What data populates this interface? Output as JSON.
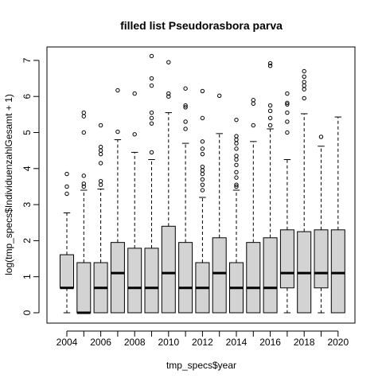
{
  "chart_data": {
    "type": "boxplot",
    "title": "filled list Pseudorasbora parva",
    "xlabel": "tmp_specs$year",
    "ylabel": "log(tmp_specs$IndividuenzahlGesamt + 1)",
    "ylim": [
      0,
      7.2
    ],
    "y_ticks": [
      0,
      1,
      2,
      3,
      4,
      5,
      6,
      7
    ],
    "x_tick_labels": [
      "2004",
      "2006",
      "2008",
      "2010",
      "2012",
      "2014",
      "2016",
      "2018",
      "2020"
    ],
    "box_fill": "#d3d3d3",
    "grid": false,
    "legend": "none",
    "boxes": [
      {
        "year": "2004",
        "lower_whisker": 0.0,
        "q1": 0.69,
        "median": 0.69,
        "q3": 1.61,
        "upper_whisker": 2.77,
        "outliers": [
          3.3,
          3.5,
          3.85
        ]
      },
      {
        "year": "2005",
        "lower_whisker": 0.0,
        "q1": 0.0,
        "median": 0.0,
        "q3": 1.39,
        "upper_whisker": 3.4,
        "outliers": [
          3.5,
          3.58,
          3.8,
          5.0,
          5.45,
          5.55
        ]
      },
      {
        "year": "2006",
        "lower_whisker": 0.0,
        "q1": 0.0,
        "median": 0.69,
        "q3": 1.39,
        "upper_whisker": 3.43,
        "outliers": [
          3.55,
          3.65,
          4.15,
          4.4,
          4.5,
          4.6,
          5.2
        ]
      },
      {
        "year": "2007",
        "lower_whisker": 0.0,
        "q1": 0.0,
        "median": 1.1,
        "q3": 1.95,
        "upper_whisker": 4.8,
        "outliers": [
          5.02,
          6.17
        ]
      },
      {
        "year": "2008",
        "lower_whisker": 0.0,
        "q1": 0.0,
        "median": 0.69,
        "q3": 1.79,
        "upper_whisker": 4.45,
        "outliers": [
          4.95,
          6.08
        ]
      },
      {
        "year": "2009",
        "lower_whisker": 0.0,
        "q1": 0.0,
        "median": 0.69,
        "q3": 1.79,
        "upper_whisker": 4.25,
        "outliers": [
          4.45,
          5.25,
          5.4,
          5.55,
          6.3,
          6.5,
          7.12
        ]
      },
      {
        "year": "2010",
        "lower_whisker": 0.0,
        "q1": 0.0,
        "median": 1.1,
        "q3": 2.4,
        "upper_whisker": 5.55,
        "outliers": [
          6.0,
          6.08,
          6.95
        ]
      },
      {
        "year": "2011",
        "lower_whisker": 0.0,
        "q1": 0.0,
        "median": 0.69,
        "q3": 1.95,
        "upper_whisker": 4.7,
        "outliers": [
          5.1,
          5.3,
          5.7,
          5.75,
          6.22
        ]
      },
      {
        "year": "2012",
        "lower_whisker": 0.0,
        "q1": 0.0,
        "median": 0.69,
        "q3": 1.39,
        "upper_whisker": 3.2,
        "outliers": [
          3.4,
          3.55,
          3.7,
          3.85,
          3.95,
          4.05,
          4.4,
          4.55,
          4.75,
          5.4,
          6.15
        ]
      },
      {
        "year": "2013",
        "lower_whisker": 0.0,
        "q1": 0.0,
        "median": 1.1,
        "q3": 2.08,
        "upper_whisker": 4.97,
        "outliers": [
          6.02
        ]
      },
      {
        "year": "2014",
        "lower_whisker": 0.0,
        "q1": 0.0,
        "median": 0.69,
        "q3": 1.39,
        "upper_whisker": 3.4,
        "outliers": [
          3.5,
          3.55,
          3.75,
          3.9,
          4.1,
          4.25,
          4.35,
          4.55,
          4.7,
          4.8,
          4.9,
          5.35
        ]
      },
      {
        "year": "2015",
        "lower_whisker": 0.0,
        "q1": 0.0,
        "median": 0.69,
        "q3": 1.95,
        "upper_whisker": 4.75,
        "outliers": [
          5.2,
          5.8,
          5.9
        ]
      },
      {
        "year": "2016",
        "lower_whisker": 0.0,
        "q1": 0.0,
        "median": 0.69,
        "q3": 2.08,
        "upper_whisker": 5.1,
        "outliers": [
          5.2,
          5.4,
          5.6,
          5.75,
          6.85,
          6.92
        ]
      },
      {
        "year": "2017",
        "lower_whisker": 0.0,
        "q1": 0.69,
        "median": 1.1,
        "q3": 2.3,
        "upper_whisker": 4.25,
        "outliers": [
          5.0,
          5.3,
          5.55,
          5.78,
          5.82,
          6.08
        ]
      },
      {
        "year": "2018",
        "lower_whisker": 0.0,
        "q1": 0.0,
        "median": 1.1,
        "q3": 2.25,
        "upper_whisker": 5.52,
        "outliers": [
          5.95,
          6.2,
          6.3,
          6.4,
          6.55,
          6.7
        ]
      },
      {
        "year": "2019",
        "lower_whisker": 0.0,
        "q1": 0.69,
        "median": 1.1,
        "q3": 2.3,
        "upper_whisker": 4.62,
        "outliers": [
          4.88
        ]
      },
      {
        "year": "2020",
        "lower_whisker": 0.0,
        "q1": 0.0,
        "median": 1.1,
        "q3": 2.3,
        "upper_whisker": 5.43,
        "outliers": []
      }
    ]
  }
}
